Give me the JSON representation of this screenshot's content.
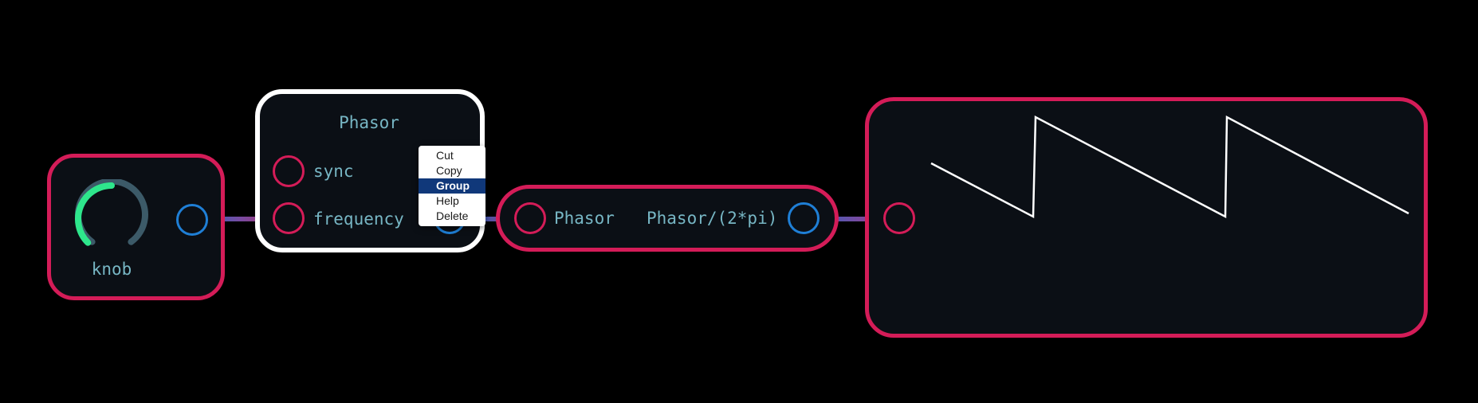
{
  "nodes": {
    "knob": {
      "label": "knob",
      "value": 0.5,
      "colors": {
        "arc": "#2ee68c",
        "track": "#3c5a68"
      }
    },
    "phasor": {
      "title": "Phasor",
      "inputs": [
        "sync",
        "frequency"
      ]
    },
    "expr": {
      "input_label": "Phasor",
      "output_label": "Phasor/(2*pi)"
    },
    "scope": {
      "waveform": "sawtooth"
    }
  },
  "context_menu": {
    "items": [
      "Cut",
      "Copy",
      "Group",
      "Help",
      "Delete"
    ],
    "highlighted": "Group"
  },
  "colors": {
    "background": "#000000",
    "node_fill": "#0b0f15",
    "node_border": "#d41c58",
    "selected_border": "#ffffff",
    "input_port": "#d41c58",
    "output_port": "#1f7fd6",
    "wire": "#6b4ba6",
    "label_text": "#77b6c4"
  }
}
